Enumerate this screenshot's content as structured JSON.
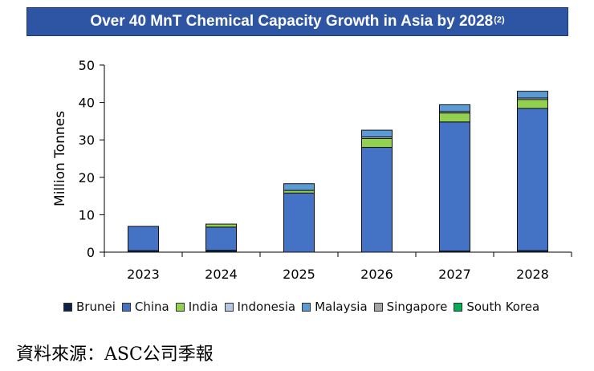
{
  "title": {
    "text": "Over 40 MnT Chemical Capacity Growth in Asia by 2028",
    "superscript": "(2)"
  },
  "source_note": "資料來源：ASC公司季報",
  "colors": {
    "Brunei": "#0b2346",
    "China": "#4472c4",
    "India": "#92d050",
    "Indonesia": "#b4c7e7",
    "Malaysia": "#5b9bd5",
    "Singapore": "#a5a5a5",
    "South Korea": "#00b050",
    "title_bg": "#2e55a4"
  },
  "chart_data": {
    "type": "bar",
    "stacked": true,
    "title": "Over 40 MnT Chemical Capacity Growth in Asia by 2028",
    "xlabel": "",
    "ylabel": "Million Tonnes",
    "ylim": [
      0,
      50
    ],
    "yticks": [
      0,
      10,
      20,
      30,
      40,
      50
    ],
    "categories": [
      "2023",
      "2024",
      "2025",
      "2026",
      "2027",
      "2028"
    ],
    "series": [
      {
        "name": "Brunei",
        "values": [
          0.4,
          0.5,
          0.0,
          0.0,
          0.3,
          0.4
        ]
      },
      {
        "name": "China",
        "values": [
          6.5,
          6.2,
          15.8,
          28.0,
          34.5,
          38.0
        ]
      },
      {
        "name": "India",
        "values": [
          0.0,
          0.8,
          0.7,
          2.4,
          2.4,
          2.4
        ]
      },
      {
        "name": "Indonesia",
        "values": [
          0.0,
          0.0,
          0.0,
          0.4,
          0.4,
          0.4
        ]
      },
      {
        "name": "Malaysia",
        "values": [
          0.0,
          0.0,
          1.8,
          1.8,
          1.8,
          1.8
        ]
      },
      {
        "name": "Singapore",
        "values": [
          0.0,
          0.0,
          0.0,
          0.0,
          0.0,
          0.0
        ]
      },
      {
        "name": "South Korea",
        "values": [
          0.0,
          0.0,
          0.0,
          0.0,
          0.0,
          0.0
        ]
      }
    ],
    "legend": [
      "Brunei",
      "China",
      "India",
      "Indonesia",
      "Malaysia",
      "Singapore",
      "South Korea"
    ],
    "legend_position": "bottom",
    "grid": false
  }
}
